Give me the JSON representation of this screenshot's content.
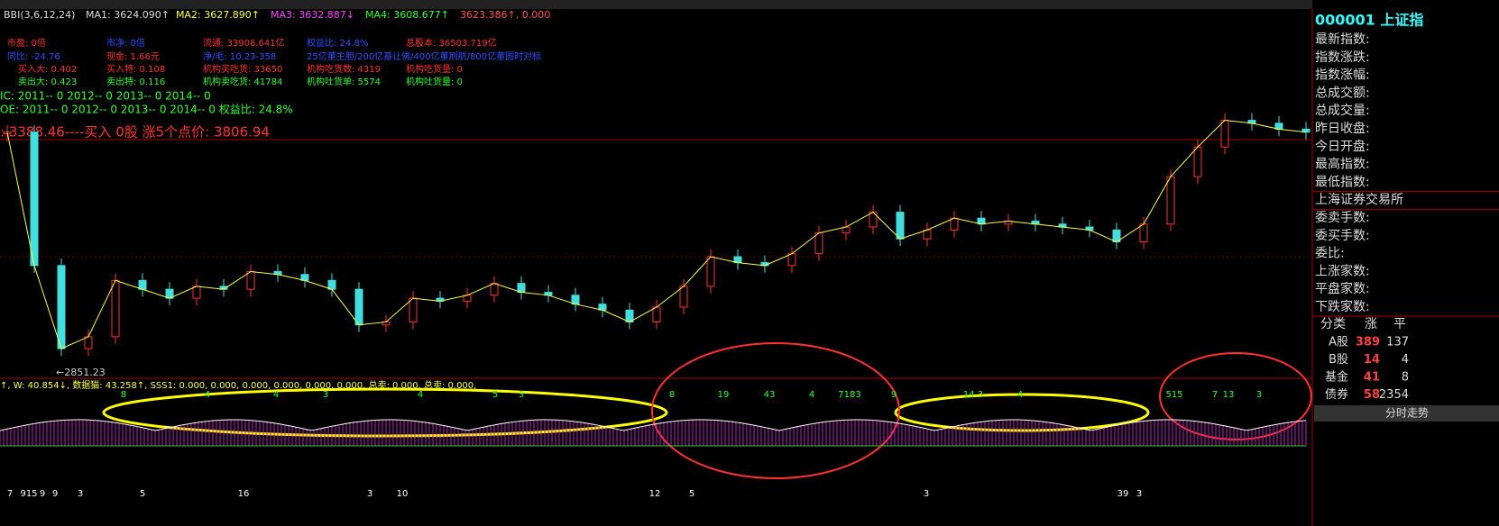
{
  "header": {
    "indicator": "BBI(3,6,12,24)",
    "ma1": "MA1: 3624.090↑",
    "ma2": "MA2: 3627.890↑",
    "ma3": "MA3: 3632.887↓",
    "ma4": "MA4: 3608.677↑",
    "ma5": "3623.386↑, 0.000"
  },
  "info_rows": [
    [
      {
        "text": "市盈: 0倍",
        "color": "#ff3030"
      },
      {
        "text": "市净: 0倍",
        "color": "#3050ff"
      },
      {
        "text": "流通: 33906.641亿",
        "color": "#ff3030"
      },
      {
        "text": "权益比: 24.8%",
        "color": "#3050ff"
      },
      {
        "text": "总股本: 36503.719亿",
        "color": "#ff3030"
      }
    ],
    [
      {
        "text": "同比: -24.76",
        "color": "#3050ff"
      },
      {
        "text": "现金: 1.66元",
        "color": "#ff3030"
      },
      {
        "text": "净/毛: 10.23-358",
        "color": "#3050ff"
      },
      {
        "text": "25亿董主胆/200亿基让佛/400亿董刷航/800亿董圆时对标",
        "color": "#3050ff"
      }
    ],
    [
      {
        "text": "买入大: 0.402",
        "color": "#ff3030"
      },
      {
        "text": "买入特: 0.108",
        "color": "#ff3030"
      },
      {
        "text": "机构买吃货: 33650",
        "color": "#ff3030"
      },
      {
        "text": "机构吃货数: 4319",
        "color": "#ff3030"
      },
      {
        "text": "机构吃货量: 0",
        "color": "#ff3030"
      }
    ],
    [
      {
        "text": "卖出大: 0.423",
        "color": "#30ff30"
      },
      {
        "text": "卖出特: 0.116",
        "color": "#30ff30"
      },
      {
        "text": "机构卖吃货: 41784",
        "color": "#30ff30"
      },
      {
        "text": "机构吐货单: 5574",
        "color": "#30ff30"
      },
      {
        "text": "机构吐货量: 0",
        "color": "#30ff30"
      }
    ],
    [
      {
        "text": "IC: 2011-- 0   2012-- 0   2013-- 0   2014-- 0",
        "color": "#30ff30"
      }
    ],
    [
      {
        "text": "OE: 2011-- 0   2012-- 0   2013-- 0   2014-- 0    权益比: 24.8%",
        "color": "#30ff30"
      }
    ]
  ],
  "signal_line": ": 3388.46----买入 0股    涨5个点价: 3806.94",
  "price_chart": {
    "closes": [
      3650,
      3200,
      2920,
      2960,
      3150,
      3120,
      3090,
      3130,
      3120,
      3180,
      3170,
      3150,
      3120,
      3000,
      3010,
      3090,
      3080,
      3100,
      3140,
      3110,
      3100,
      3070,
      3050,
      3010,
      3060,
      3130,
      3230,
      3210,
      3200,
      3240,
      3310,
      3330,
      3380,
      3290,
      3320,
      3360,
      3340,
      3350,
      3340,
      3330,
      3320,
      3280,
      3340,
      3500,
      3600,
      3690,
      3680,
      3660,
      3650
    ],
    "ylim": [
      2820,
      4050
    ],
    "low_label": "←2851.23"
  },
  "indicator": {
    "header": "↑, W: 40.854↓, 数据猫: 43.258↑, SSS1: 0.000, 0.000, 0.000, 0.000, 0.000, 0.000, 总卖: 0.000, 总卖: 0.000,",
    "top_labels": [
      "8",
      "4",
      "4",
      "3",
      "4",
      "5",
      "3",
      "8",
      "19",
      "43",
      "4",
      "7183",
      "9",
      "14 3",
      "4",
      "515",
      "7",
      "13",
      "3"
    ],
    "bottom_labels": [
      "7",
      "915",
      "9",
      "9",
      "3",
      "5",
      "16",
      "3",
      "10",
      "12",
      "5",
      "3",
      "39",
      "3"
    ]
  },
  "quote_panel": {
    "title": "000001 上证指",
    "fields": [
      "最新指数:",
      "指数涨跌:",
      "指数涨幅:",
      "总成交额:",
      "总成交量:",
      "昨日收盘:",
      "今日开盘:",
      "最高指数:",
      "最低指数:",
      "上海证券交易所",
      "委卖手数:",
      "委买手数:",
      "委比:",
      "上涨家数:",
      "平盘家数:",
      "下跌家数:"
    ],
    "table_header": [
      "分类",
      "涨",
      "平"
    ],
    "table_rows": [
      [
        "A股",
        389,
        137
      ],
      [
        "B股",
        14,
        4
      ],
      [
        "基金",
        41,
        8
      ],
      [
        "债券",
        58,
        2354
      ]
    ],
    "button": "分时走势"
  }
}
